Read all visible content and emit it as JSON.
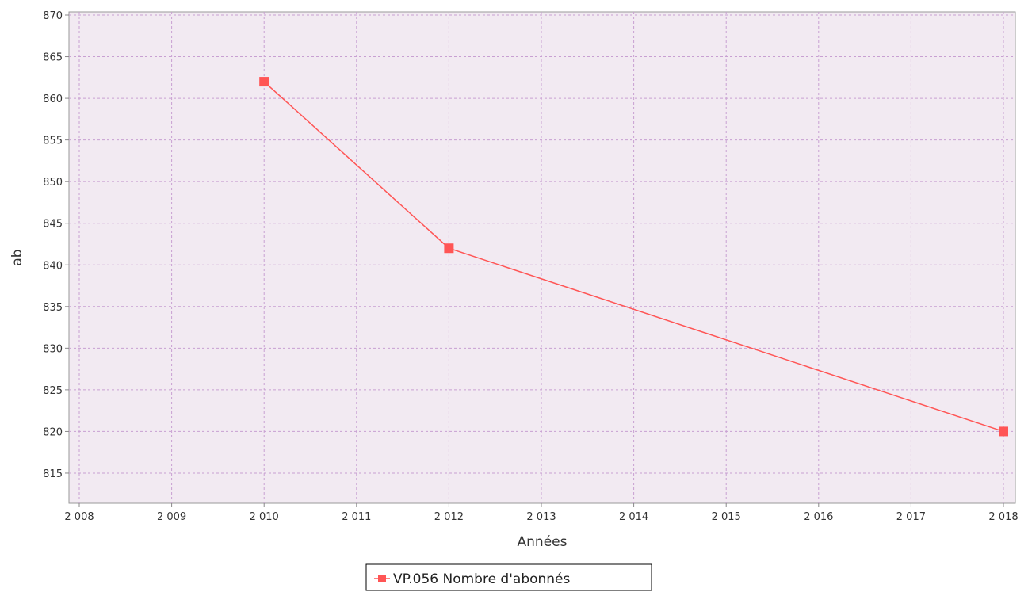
{
  "chart_data": {
    "type": "line",
    "xlabel": "Années",
    "ylabel": "ab",
    "xlim": [
      2008,
      2018
    ],
    "ylim": [
      811,
      870
    ],
    "x_ticks": [
      2008,
      2009,
      2010,
      2011,
      2012,
      2013,
      2014,
      2015,
      2016,
      2017,
      2018
    ],
    "x_tick_labels": [
      "2 008",
      "2 009",
      "2 010",
      "2 011",
      "2 012",
      "2 013",
      "2 014",
      "2 015",
      "2 016",
      "2 017",
      "2 018"
    ],
    "y_ticks": [
      815,
      820,
      825,
      830,
      835,
      840,
      845,
      850,
      855,
      860,
      865,
      870
    ],
    "y_tick_labels": [
      "815",
      "820",
      "825",
      "830",
      "835",
      "840",
      "845",
      "850",
      "855",
      "860",
      "865",
      "870"
    ],
    "grid": true,
    "legend_position": "bottom-center",
    "series": [
      {
        "name": "VP.056 Nombre d'abonnés",
        "color": "#ff5555",
        "marker": "square",
        "x": [
          2010,
          2012,
          2018
        ],
        "y": [
          862,
          842,
          820
        ]
      }
    ]
  },
  "colors": {
    "plot_background": "#f2eaf2",
    "grid": "#c8a0d2",
    "axis": "#888888",
    "line": "#ff5555"
  }
}
